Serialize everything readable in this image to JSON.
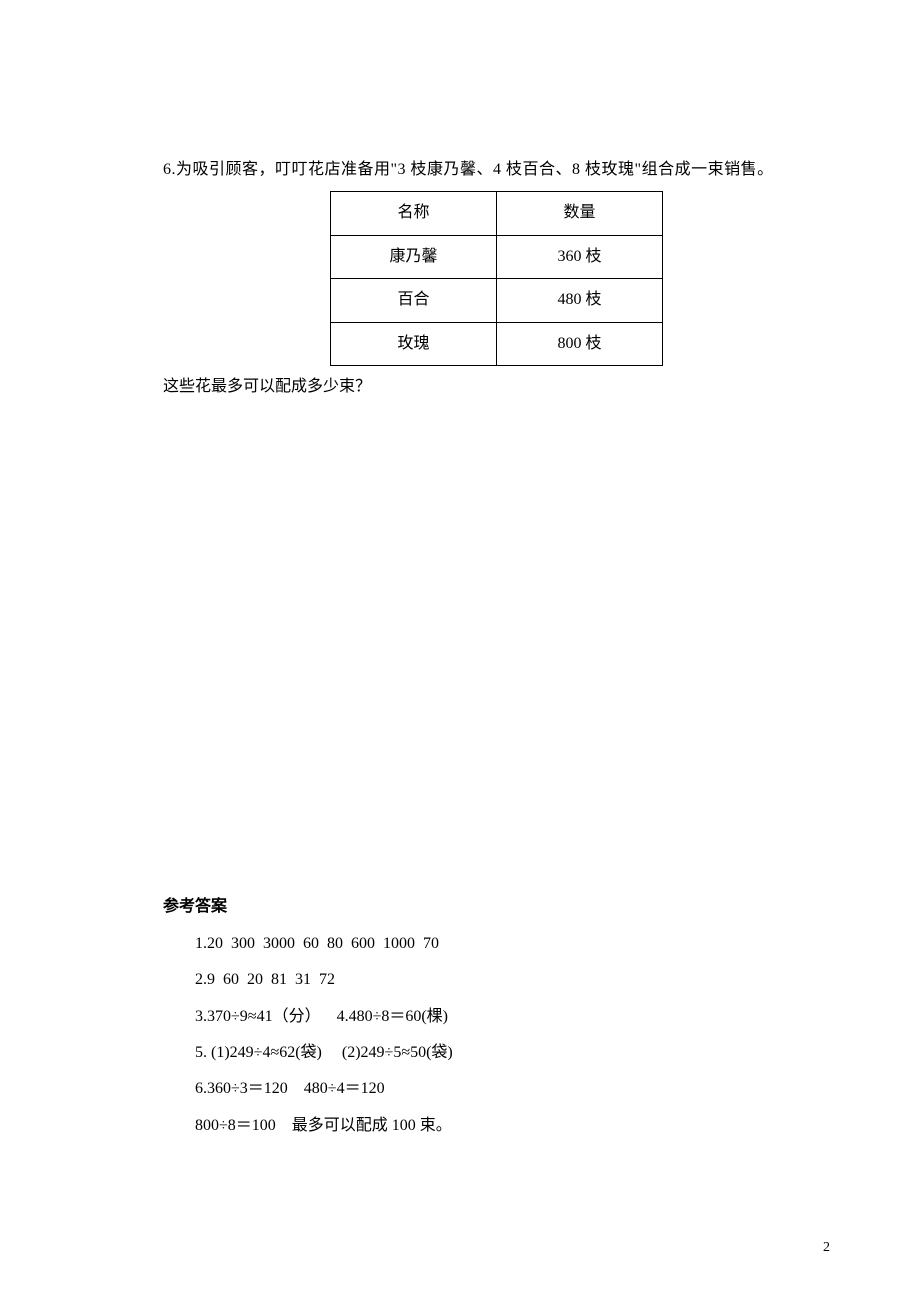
{
  "question": {
    "number_prefix": "6.",
    "prompt": "为吸引顾客，叮叮花店准备用\"3 枝康乃馨、4 枝百合、8 枝玫瑰\"组合成一束销售。",
    "table": {
      "headers": [
        "名称",
        "数量"
      ],
      "rows": [
        {
          "name": "康乃馨",
          "qty": "360 枝"
        },
        {
          "name": "百合",
          "qty": "480 枝"
        },
        {
          "name": "玫瑰",
          "qty": "800 枝"
        }
      ]
    },
    "followup": "这些花最多可以配成多少束？"
  },
  "answers": {
    "title": "参考答案",
    "lines": [
      "1.20  300  3000  60  80  600  1000  70",
      "2.9  60  20  81  31  72",
      "3.370÷9≈41（分）    4.480÷8＝60(棵)",
      "5. (1)249÷4≈62(袋)     (2)249÷5≈50(袋)",
      "6.360÷3＝120    480÷4＝120",
      "800÷8＝100    最多可以配成 100 束。"
    ]
  },
  "page_number": "2"
}
